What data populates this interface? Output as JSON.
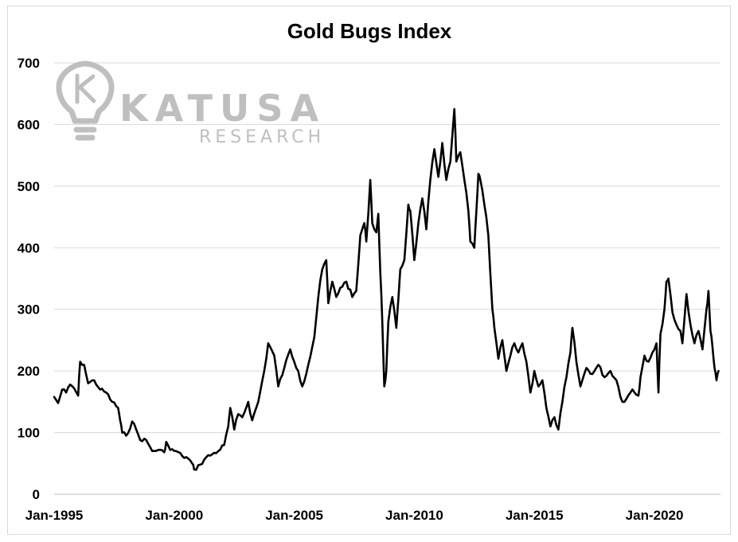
{
  "watermark": {
    "brand": "KATUSA",
    "sub": "RESEARCH",
    "icon": "lightbulb-k-icon",
    "color": "#bfbfbf"
  },
  "chart_data": {
    "type": "line",
    "title": "Gold Bugs Index",
    "xlabel": "",
    "ylabel": "",
    "ylim": [
      0,
      700
    ],
    "yticks": [
      0,
      100,
      200,
      300,
      400,
      500,
      600,
      700
    ],
    "xlim": [
      "1995-01",
      "2022-10"
    ],
    "xticks": [
      {
        "label": "Jan-1995",
        "x": "1995-01"
      },
      {
        "label": "Jan-2000",
        "x": "2000-01"
      },
      {
        "label": "Jan-2005",
        "x": "2005-01"
      },
      {
        "label": "Jan-2010",
        "x": "2010-01"
      },
      {
        "label": "Jan-2015",
        "x": "2015-01"
      },
      {
        "label": "Jan-2020",
        "x": "2020-01"
      }
    ],
    "grid": true,
    "legend": "none",
    "series": [
      {
        "color": "#000000",
        "points": [
          [
            "1995-01",
            158
          ],
          [
            "1995-03",
            148
          ],
          [
            "1995-05",
            170
          ],
          [
            "1995-07",
            165
          ],
          [
            "1995-09",
            178
          ],
          [
            "1995-11",
            172
          ],
          [
            "1996-01",
            160
          ],
          [
            "1996-02",
            215
          ],
          [
            "1996-04",
            210
          ],
          [
            "1996-06",
            180
          ],
          [
            "1996-09",
            185
          ],
          [
            "1996-12",
            170
          ],
          [
            "1997-03",
            165
          ],
          [
            "1997-06",
            150
          ],
          [
            "1997-09",
            140
          ],
          [
            "1997-10",
            120
          ],
          [
            "1997-11",
            100
          ],
          [
            "1998-01",
            95
          ],
          [
            "1998-04",
            118
          ],
          [
            "1998-06",
            105
          ],
          [
            "1998-08",
            88
          ],
          [
            "1998-10",
            90
          ],
          [
            "1998-12",
            82
          ],
          [
            "1999-02",
            70
          ],
          [
            "1999-05",
            72
          ],
          [
            "1999-08",
            68
          ],
          [
            "1999-09",
            85
          ],
          [
            "1999-11",
            72
          ],
          [
            "2000-02",
            70
          ],
          [
            "2000-05",
            62
          ],
          [
            "2000-08",
            58
          ],
          [
            "2000-10",
            50
          ],
          [
            "2000-11",
            40
          ],
          [
            "2001-02",
            48
          ],
          [
            "2001-05",
            60
          ],
          [
            "2001-08",
            65
          ],
          [
            "2001-11",
            70
          ],
          [
            "2002-02",
            80
          ],
          [
            "2002-04",
            110
          ],
          [
            "2002-05",
            140
          ],
          [
            "2002-07",
            105
          ],
          [
            "2002-09",
            130
          ],
          [
            "2002-11",
            125
          ],
          [
            "2003-02",
            150
          ],
          [
            "2003-04",
            120
          ],
          [
            "2003-07",
            150
          ],
          [
            "2003-10",
            200
          ],
          [
            "2003-12",
            245
          ],
          [
            "2004-03",
            225
          ],
          [
            "2004-05",
            175
          ],
          [
            "2004-08",
            205
          ],
          [
            "2004-11",
            235
          ],
          [
            "2005-01",
            215
          ],
          [
            "2005-03",
            200
          ],
          [
            "2005-05",
            175
          ],
          [
            "2005-08",
            210
          ],
          [
            "2005-11",
            255
          ],
          [
            "2006-01",
            320
          ],
          [
            "2006-03",
            365
          ],
          [
            "2006-05",
            380
          ],
          [
            "2006-06",
            310
          ],
          [
            "2006-08",
            345
          ],
          [
            "2006-10",
            320
          ],
          [
            "2006-12",
            335
          ],
          [
            "2007-03",
            345
          ],
          [
            "2007-06",
            320
          ],
          [
            "2007-08",
            330
          ],
          [
            "2007-10",
            420
          ],
          [
            "2007-12",
            440
          ],
          [
            "2008-01",
            410
          ],
          [
            "2008-03",
            510
          ],
          [
            "2008-04",
            440
          ],
          [
            "2008-06",
            425
          ],
          [
            "2008-07",
            455
          ],
          [
            "2008-08",
            360
          ],
          [
            "2008-09",
            280
          ],
          [
            "2008-10",
            175
          ],
          [
            "2008-11",
            200
          ],
          [
            "2008-12",
            280
          ],
          [
            "2009-02",
            320
          ],
          [
            "2009-04",
            270
          ],
          [
            "2009-06",
            365
          ],
          [
            "2009-08",
            380
          ],
          [
            "2009-10",
            470
          ],
          [
            "2009-11",
            460
          ],
          [
            "2010-01",
            380
          ],
          [
            "2010-03",
            440
          ],
          [
            "2010-05",
            480
          ],
          [
            "2010-07",
            430
          ],
          [
            "2010-09",
            510
          ],
          [
            "2010-11",
            560
          ],
          [
            "2011-01",
            515
          ],
          [
            "2011-03",
            570
          ],
          [
            "2011-05",
            510
          ],
          [
            "2011-07",
            540
          ],
          [
            "2011-09",
            625
          ],
          [
            "2011-10",
            540
          ],
          [
            "2011-12",
            555
          ],
          [
            "2012-02",
            510
          ],
          [
            "2012-04",
            460
          ],
          [
            "2012-05",
            410
          ],
          [
            "2012-07",
            400
          ],
          [
            "2012-08",
            460
          ],
          [
            "2012-09",
            520
          ],
          [
            "2012-10",
            510
          ],
          [
            "2012-12",
            470
          ],
          [
            "2013-02",
            420
          ],
          [
            "2013-04",
            300
          ],
          [
            "2013-05",
            270
          ],
          [
            "2013-07",
            220
          ],
          [
            "2013-09",
            250
          ],
          [
            "2013-11",
            200
          ],
          [
            "2014-01",
            225
          ],
          [
            "2014-03",
            245
          ],
          [
            "2014-05",
            230
          ],
          [
            "2014-07",
            245
          ],
          [
            "2014-09",
            215
          ],
          [
            "2014-11",
            165
          ],
          [
            "2015-01",
            200
          ],
          [
            "2015-03",
            175
          ],
          [
            "2015-05",
            185
          ],
          [
            "2015-07",
            140
          ],
          [
            "2015-09",
            110
          ],
          [
            "2015-11",
            125
          ],
          [
            "2016-01",
            105
          ],
          [
            "2016-03",
            150
          ],
          [
            "2016-05",
            190
          ],
          [
            "2016-07",
            230
          ],
          [
            "2016-08",
            270
          ],
          [
            "2016-10",
            215
          ],
          [
            "2016-12",
            175
          ],
          [
            "2017-03",
            205
          ],
          [
            "2017-06",
            195
          ],
          [
            "2017-09",
            210
          ],
          [
            "2017-12",
            190
          ],
          [
            "2018-03",
            200
          ],
          [
            "2018-06",
            185
          ],
          [
            "2018-09",
            150
          ],
          [
            "2018-11",
            155
          ],
          [
            "2019-02",
            170
          ],
          [
            "2019-05",
            160
          ],
          [
            "2019-06",
            190
          ],
          [
            "2019-08",
            225
          ],
          [
            "2019-10",
            215
          ],
          [
            "2019-12",
            230
          ],
          [
            "2020-02",
            245
          ],
          [
            "2020-03",
            165
          ],
          [
            "2020-04",
            260
          ],
          [
            "2020-06",
            300
          ],
          [
            "2020-07",
            345
          ],
          [
            "2020-08",
            350
          ],
          [
            "2020-10",
            295
          ],
          [
            "2020-12",
            275
          ],
          [
            "2021-02",
            265
          ],
          [
            "2021-03",
            245
          ],
          [
            "2021-05",
            325
          ],
          [
            "2021-07",
            275
          ],
          [
            "2021-09",
            245
          ],
          [
            "2021-11",
            265
          ],
          [
            "2022-01",
            235
          ],
          [
            "2022-03",
            300
          ],
          [
            "2022-04",
            330
          ],
          [
            "2022-05",
            265
          ],
          [
            "2022-06",
            240
          ],
          [
            "2022-07",
            205
          ],
          [
            "2022-08",
            185
          ],
          [
            "2022-09",
            200
          ]
        ]
      }
    ]
  }
}
